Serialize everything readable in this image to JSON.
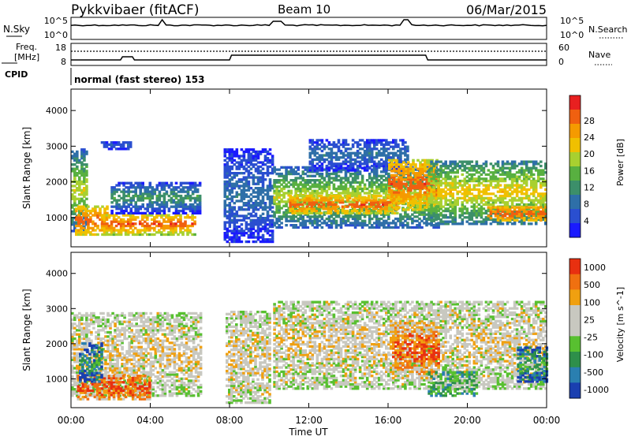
{
  "header": {
    "station": "Pykkvibaer (fitACF)",
    "beam": "Beam 10",
    "date": "06/Mar/2015"
  },
  "status_panels": {
    "nsky": {
      "label": "N.Sky",
      "tick_top": "10^5",
      "tick_bottom": "10^0"
    },
    "nsearch": {
      "label": "N.Search",
      "tick_top": "10^5",
      "tick_bottom": "10^0"
    },
    "freq": {
      "label_line1": "Freq.",
      "label_line2": "[MHz]",
      "ticks": [
        "18",
        "8"
      ]
    },
    "nave": {
      "label": "Nave",
      "ticks": [
        "60",
        "0"
      ]
    },
    "cpid": {
      "label": "CPID",
      "mode": "normal (fast stereo) 153"
    }
  },
  "chart_data": [
    {
      "type": "heatmap",
      "name": "power",
      "ylabel": "Slant Range [km]",
      "ylim": [
        180,
        4600
      ],
      "yticks": [
        1000,
        2000,
        3000,
        4000
      ],
      "xlim_hours": [
        0,
        24
      ],
      "colorbar": {
        "label": "Power [dB]",
        "ticks": [
          4,
          8,
          12,
          16,
          20,
          24,
          28
        ],
        "colors": [
          "#1a1aff",
          "#2a4fd0",
          "#2e6fa8",
          "#3c8f6a",
          "#58b040",
          "#a8d030",
          "#f0c000",
          "#f59a00",
          "#f06010",
          "#e82020"
        ]
      },
      "bands": [
        {
          "t0": 0.0,
          "t1": 0.8,
          "r0": 600,
          "r1": 2900,
          "v0": 8,
          "v1": 20
        },
        {
          "t0": 0.2,
          "t1": 1.8,
          "r0": 500,
          "r1": 1300,
          "v0": 20,
          "v1": 28
        },
        {
          "t0": 1.5,
          "t1": 6.2,
          "r0": 500,
          "r1": 1100,
          "v0": 18,
          "v1": 28
        },
        {
          "t0": 2.0,
          "t1": 6.5,
          "r0": 1100,
          "r1": 2000,
          "v0": 4,
          "v1": 14
        },
        {
          "t0": 1.5,
          "t1": 3.0,
          "r0": 2900,
          "r1": 3100,
          "v0": 4,
          "v1": 8
        },
        {
          "t0": 7.7,
          "t1": 10.2,
          "r0": 300,
          "r1": 2900,
          "v0": 4,
          "v1": 10
        },
        {
          "t0": 10.2,
          "t1": 18.5,
          "r0": 700,
          "r1": 2400,
          "v0": 8,
          "v1": 20
        },
        {
          "t0": 11.0,
          "t1": 16.5,
          "r0": 1100,
          "r1": 1600,
          "v0": 20,
          "v1": 28
        },
        {
          "t0": 12.0,
          "t1": 17.0,
          "r0": 2300,
          "r1": 3200,
          "v0": 4,
          "v1": 10
        },
        {
          "t0": 16.0,
          "t1": 18.5,
          "r0": 1200,
          "r1": 2600,
          "v0": 20,
          "v1": 28
        },
        {
          "t0": 18.0,
          "t1": 24.0,
          "r0": 800,
          "r1": 2600,
          "v0": 10,
          "v1": 22
        },
        {
          "t0": 21.0,
          "t1": 24.0,
          "r0": 900,
          "r1": 1300,
          "v0": 22,
          "v1": 28
        }
      ]
    },
    {
      "type": "heatmap",
      "name": "velocity",
      "ylabel": "Slant Range [km]",
      "xlabel": "Time UT",
      "ylim": [
        180,
        4600
      ],
      "yticks": [
        1000,
        2000,
        3000,
        4000
      ],
      "xticks": [
        "00:00",
        "04:00",
        "08:00",
        "12:00",
        "16:00",
        "20:00",
        "00:00"
      ],
      "xlim_hours": [
        0,
        24
      ],
      "colorbar": {
        "label": "Velocity [m s^-1]",
        "ticks": [
          "1000",
          "500",
          "100",
          "25",
          "-25",
          "-100",
          "-500",
          "-1000"
        ],
        "colors": [
          "#1a3fb0",
          "#2a7fb0",
          "#2e8f4a",
          "#58c030",
          "#c8c8c0",
          "#c8c8c0",
          "#f0a010",
          "#f07010",
          "#e83010"
        ]
      },
      "bands": [
        {
          "t0": 0.0,
          "t1": 6.5,
          "r0": 500,
          "r1": 2900,
          "v0": 4,
          "v1": 5
        },
        {
          "t0": 0.3,
          "t1": 4.0,
          "r0": 400,
          "r1": 1100,
          "v0": 6,
          "v1": 8
        },
        {
          "t0": 0.4,
          "t1": 1.6,
          "r0": 900,
          "r1": 2000,
          "v0": 0,
          "v1": 2
        },
        {
          "t0": 7.8,
          "t1": 10.0,
          "r0": 300,
          "r1": 2900,
          "v0": 4,
          "v1": 5
        },
        {
          "t0": 10.2,
          "t1": 24.0,
          "r0": 700,
          "r1": 3200,
          "v0": 4,
          "v1": 5
        },
        {
          "t0": 16.2,
          "t1": 18.5,
          "r0": 1000,
          "r1": 2600,
          "v0": 5,
          "v1": 8
        },
        {
          "t0": 18.0,
          "t1": 20.5,
          "r0": 500,
          "r1": 1200,
          "v0": 2,
          "v1": 3
        },
        {
          "t0": 22.5,
          "t1": 24.0,
          "r0": 900,
          "r1": 1900,
          "v0": 0,
          "v1": 3
        }
      ]
    }
  ]
}
